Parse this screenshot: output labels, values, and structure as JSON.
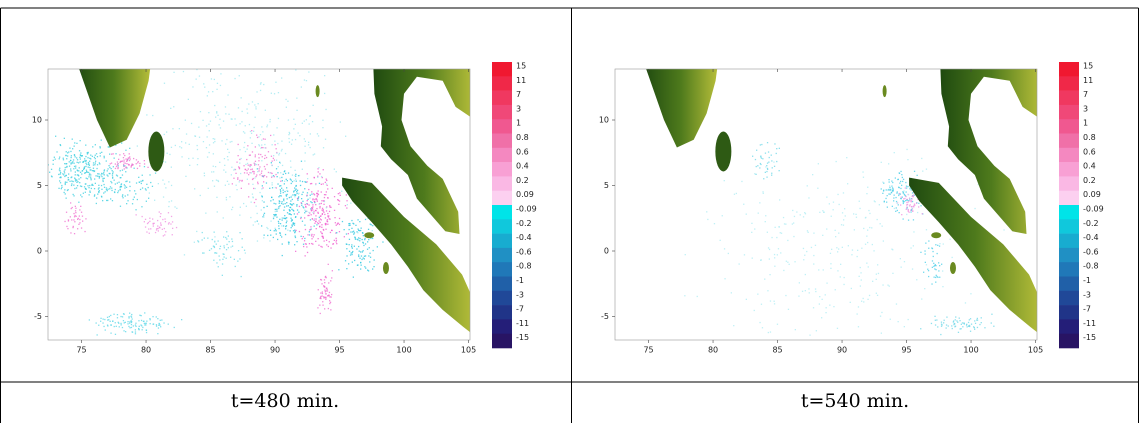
{
  "panels": [
    {
      "caption": "t=480 min.",
      "x_ticks": [
        "75",
        "80",
        "85",
        "90",
        "95",
        "100",
        "105"
      ],
      "y_ticks": [
        "10",
        "5",
        "0",
        "-5"
      ],
      "colorbar_labels": [
        "15",
        "11",
        "7",
        "3",
        "1",
        "0.8",
        "0.6",
        "0.4",
        "0.2",
        "0.09",
        "-0.09",
        "-0.2",
        "-0.4",
        "-0.6",
        "-0.8",
        "-1",
        "-3",
        "-7",
        "-11",
        "-15"
      ]
    },
    {
      "caption": "t=540 min.",
      "x_ticks": [
        "75",
        "80",
        "85",
        "90",
        "95",
        "100",
        "105"
      ],
      "y_ticks": [
        "10",
        "5",
        "0",
        "-5"
      ],
      "colorbar_labels": [
        "15",
        "11",
        "7",
        "3",
        "1",
        "0.8",
        "0.6",
        "0.4",
        "0.2",
        "0.09",
        "-0.09",
        "-0.2",
        "-0.4",
        "-0.6",
        "-0.8",
        "-1",
        "-3",
        "-7",
        "-11",
        "-15"
      ]
    }
  ]
}
